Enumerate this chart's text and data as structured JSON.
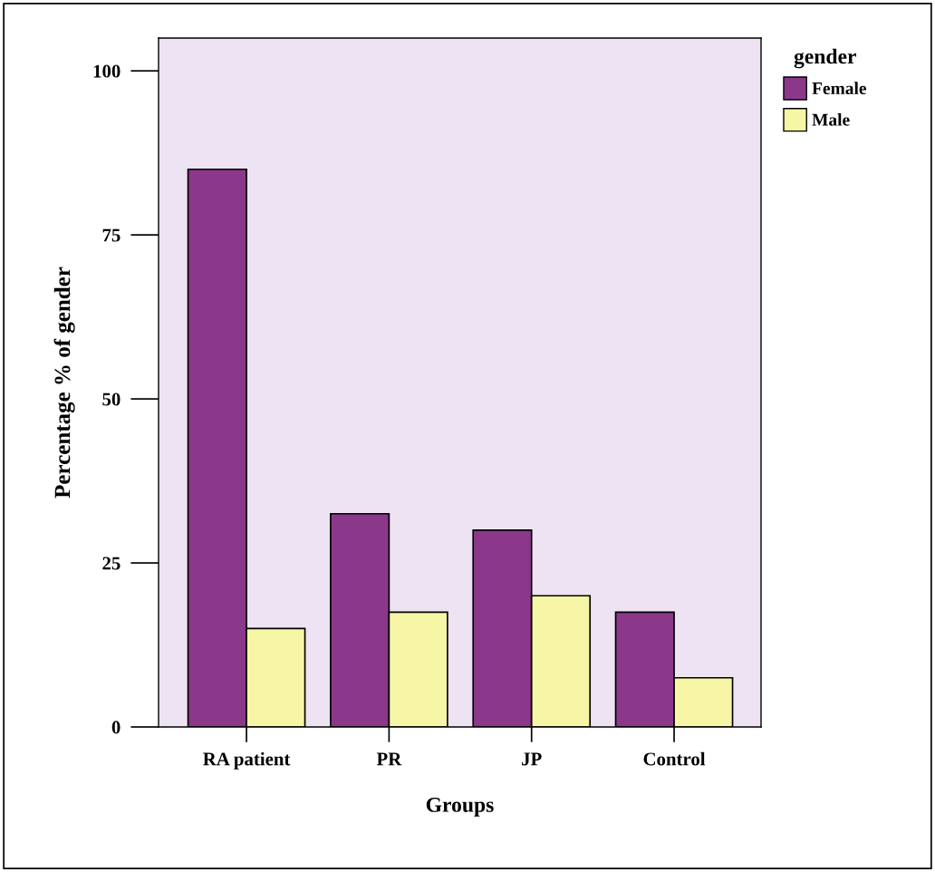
{
  "chart_data": {
    "type": "bar",
    "xlabel": "Groups",
    "ylabel": "Percentage % of gender",
    "legend_title": "gender",
    "categories": [
      "RA patient",
      "PR",
      "JP",
      "Control"
    ],
    "series": [
      {
        "name": "Female",
        "color": "#8b388b",
        "values": [
          85,
          32.5,
          30,
          17.5
        ]
      },
      {
        "name": "Male",
        "color": "#f7f6a6",
        "values": [
          15,
          17.5,
          20,
          7.5
        ]
      }
    ],
    "ylim": [
      0,
      105
    ],
    "yticks": [
      0,
      25,
      50,
      75,
      100
    ],
    "grid": false,
    "legend": "top right"
  }
}
